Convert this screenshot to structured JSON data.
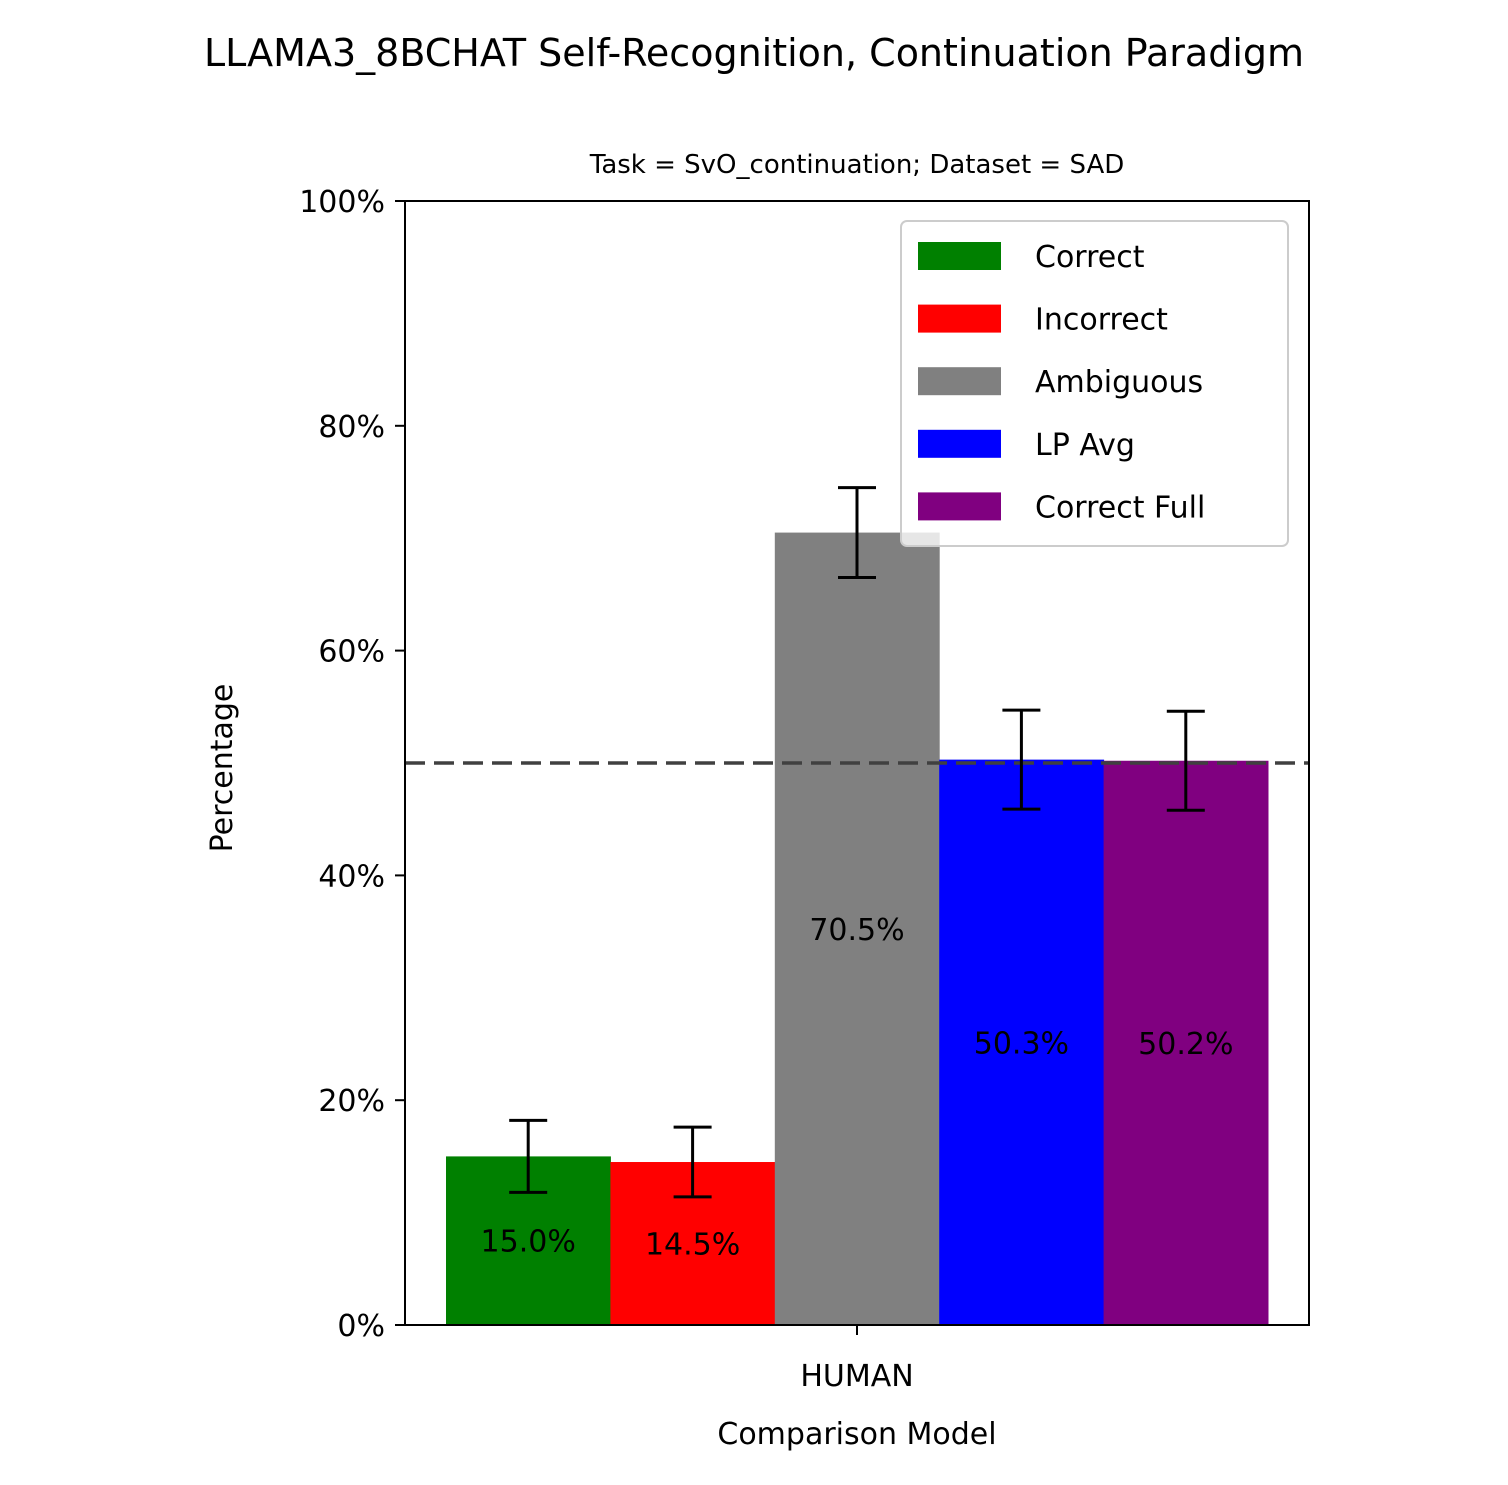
{
  "title": "LLAMA3_8BCHAT Self-Recognition, Continuation Paradigm",
  "subtitle": "Task = SvO_continuation;  Dataset = SAD",
  "chart_data": {
    "type": "bar",
    "categories": [
      "HUMAN"
    ],
    "series": [
      {
        "name": "Correct",
        "color": "#008000",
        "values": [
          15.0
        ],
        "error": [
          3.2
        ],
        "label": "15.0%"
      },
      {
        "name": "Incorrect",
        "color": "#ff0000",
        "values": [
          14.5
        ],
        "error": [
          3.1
        ],
        "label": "14.5%"
      },
      {
        "name": "Ambiguous",
        "color": "#808080",
        "values": [
          70.5
        ],
        "error": [
          4.0
        ],
        "label": "70.5%"
      },
      {
        "name": "LP Avg",
        "color": "#0000ff",
        "values": [
          50.3
        ],
        "error": [
          4.4
        ],
        "label": "50.3%"
      },
      {
        "name": "Correct Full",
        "color": "#800080",
        "values": [
          50.2
        ],
        "error": [
          4.4
        ],
        "label": "50.2%"
      }
    ],
    "reference_line": 50,
    "xlabel": "Comparison Model",
    "ylabel": "Percentage",
    "ylim": [
      0,
      100
    ],
    "yticks": [
      {
        "value": 0,
        "label": "0%"
      },
      {
        "value": 20,
        "label": "20%"
      },
      {
        "value": 40,
        "label": "40%"
      },
      {
        "value": 60,
        "label": "60%"
      },
      {
        "value": 80,
        "label": "80%"
      },
      {
        "value": 100,
        "label": "100%"
      }
    ],
    "legend_position": "top-right",
    "grid": false
  }
}
